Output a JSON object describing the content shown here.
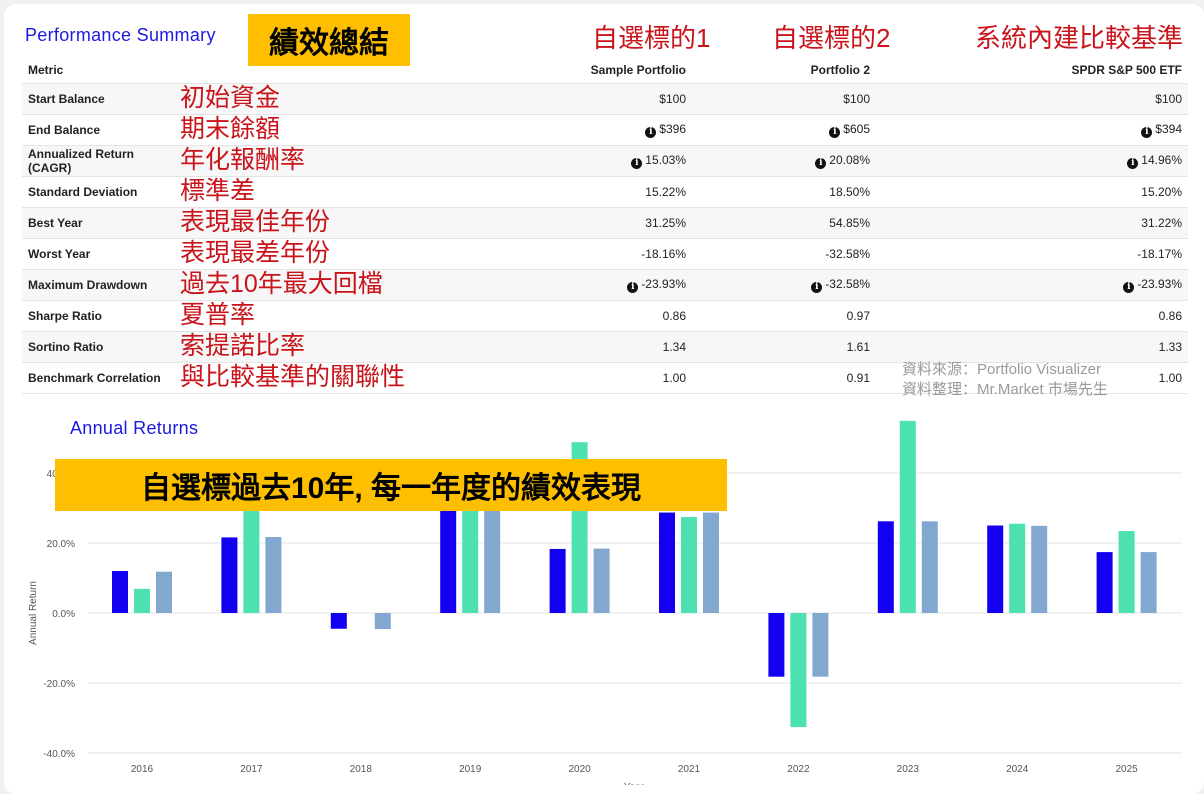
{
  "summary": {
    "title": "Performance Summary",
    "title_annotation": "績效總結",
    "column_annotations": [
      "自選標的1",
      "自選標的2",
      "系統內建比較基準"
    ],
    "columns": [
      "Metric",
      "Sample Portfolio",
      "Portfolio 2",
      "SPDR S&P 500 ETF"
    ],
    "rows": [
      {
        "metric": "Start Balance",
        "note": "初始資金",
        "info": false,
        "values": [
          "$100",
          "$100",
          "$100"
        ]
      },
      {
        "metric": "End Balance",
        "note": "期末餘額",
        "info": true,
        "values": [
          "$396",
          "$605",
          "$394"
        ]
      },
      {
        "metric": "Annualized Return (CAGR)",
        "note": "年化報酬率",
        "info": true,
        "values": [
          "15.03%",
          "20.08%",
          "14.96%"
        ]
      },
      {
        "metric": "Standard Deviation",
        "note": "標準差",
        "info": false,
        "values": [
          "15.22%",
          "18.50%",
          "15.20%"
        ]
      },
      {
        "metric": "Best Year",
        "note": "表現最佳年份",
        "info": false,
        "values": [
          "31.25%",
          "54.85%",
          "31.22%"
        ]
      },
      {
        "metric": "Worst Year",
        "note": "表現最差年份",
        "info": false,
        "values": [
          "-18.16%",
          "-32.58%",
          "-18.17%"
        ]
      },
      {
        "metric": "Maximum Drawdown",
        "note": "過去10年最大回檔",
        "info": true,
        "values": [
          "-23.93%",
          "-32.58%",
          "-23.93%"
        ]
      },
      {
        "metric": "Sharpe Ratio",
        "note": "夏普率",
        "info": false,
        "values": [
          "0.86",
          "0.97",
          "0.86"
        ]
      },
      {
        "metric": "Sortino Ratio",
        "note": "索提諾比率",
        "info": false,
        "values": [
          "1.34",
          "1.61",
          "1.33"
        ]
      },
      {
        "metric": "Benchmark Correlation",
        "note": "與比較基準的關聯性",
        "info": false,
        "values": [
          "1.00",
          "0.91",
          "1.00"
        ]
      }
    ],
    "watermark": [
      "資料來源：Portfolio Visualizer",
      "資料整理：Mr.Market 市場先生"
    ]
  },
  "chart_data": {
    "type": "bar",
    "title": "Annual Returns",
    "annotation": "自選標過去10年, 每一年度的績效表現",
    "xlabel": "Year",
    "ylabel": "Annual Return",
    "ylim": [
      -40,
      50
    ],
    "yticks": [
      "-40.0%",
      "-20.0%",
      "0.0%",
      "20.0%",
      "40.0%"
    ],
    "ytick_values": [
      -40,
      -20,
      0,
      20,
      40
    ],
    "grid": true,
    "categories": [
      "2016",
      "2017",
      "2018",
      "2019",
      "2020",
      "2021",
      "2022",
      "2023",
      "2024",
      "2025"
    ],
    "series": [
      {
        "name": "Sample Portfolio",
        "color": "#1400f0",
        "values": [
          12.0,
          21.6,
          -4.5,
          31.2,
          18.3,
          28.7,
          -18.2,
          26.2,
          25.0,
          17.4
        ]
      },
      {
        "name": "Portfolio 2",
        "color": "#4de0b0",
        "values": [
          6.9,
          36.0,
          0.0,
          38.0,
          48.8,
          27.4,
          -32.6,
          54.9,
          25.5,
          23.4
        ]
      },
      {
        "name": "SPDR S&P 500 ETF",
        "color": "#82a8cf",
        "values": [
          11.8,
          21.7,
          -4.6,
          31.2,
          18.4,
          28.7,
          -18.2,
          26.2,
          24.9,
          17.4
        ]
      }
    ]
  },
  "colors": {
    "title": "#1a1ae0",
    "annotation_red": "#c8141a",
    "highlight": "#fdbf00"
  }
}
